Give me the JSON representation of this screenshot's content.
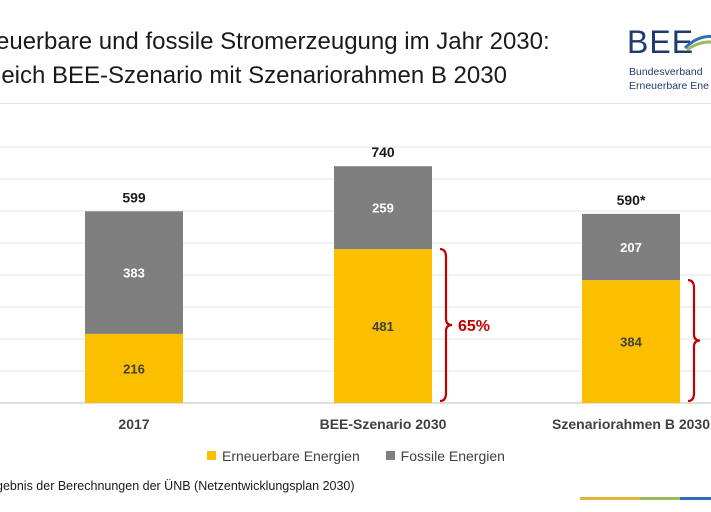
{
  "title": {
    "line1": "euerbare und fossile Stromerzeugung im Jahr 2030:",
    "line2": "leich BEE-Szenario mit Szenariorahmen B 2030"
  },
  "logo": {
    "word": "BEE",
    "sub1": "Bundesverband",
    "sub2": "Erneuerbare Ene"
  },
  "colors": {
    "renewable": "#FBBF00",
    "fossil": "#7F7F7F",
    "bracket": "#C00000",
    "band_yellow": "#E2B33A",
    "band_green": "#9BBB59",
    "band_blue": "#2F6DB5"
  },
  "chart_data": {
    "type": "bar",
    "stacked": true,
    "categories": [
      "2017",
      "BEE-Szenario 2030",
      "Szenariorahmen B 2030"
    ],
    "series": [
      {
        "name": "Erneuerbare Energien",
        "values": [
          216,
          481,
          384
        ]
      },
      {
        "name": "Fossile Energien",
        "values": [
          383,
          259,
          207
        ]
      }
    ],
    "totals": [
      "599",
      "740",
      "590*"
    ],
    "annotations": [
      {
        "category": "BEE-Szenario 2030",
        "text": "65%"
      }
    ],
    "ylim": [
      0,
      800
    ],
    "grid": true,
    "legend": "bottom"
  },
  "footnote": "gebnis der Berechnungen der ÜNB (Netzentwicklungsplan 2030)"
}
